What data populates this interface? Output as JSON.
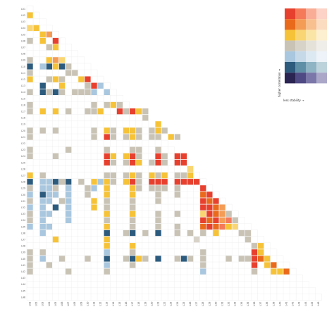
{
  "chart_data": {
    "type": "heatmap",
    "title": "",
    "xlabel": "",
    "ylabel": "",
    "labels": [
      "L01",
      "L02",
      "L03",
      "L04",
      "L05",
      "L06",
      "L07",
      "L08",
      "L09",
      "L10",
      "L11",
      "L12",
      "L13",
      "L14",
      "L15",
      "L16",
      "L17",
      "L18",
      "L19",
      "L20",
      "L21",
      "L22",
      "L23",
      "L24",
      "L25",
      "L26",
      "L27",
      "L28",
      "L29",
      "L30",
      "L31",
      "L32",
      "L33",
      "L34",
      "L35",
      "L36",
      "L37",
      "L38",
      "L39",
      "L40",
      "L41",
      "L42",
      "L43",
      "L44",
      "L45",
      "L46"
    ],
    "palette": {
      "r0c0": "#e8402e",
      "r0c1": "#f47a5a",
      "r0c2": "#f9ad97",
      "r0c3": "#fcd3c6",
      "r1c0": "#ea6a1c",
      "r1c1": "#f49c55",
      "r1c2": "#f8c08f",
      "r1c3": "#fbdcc1",
      "r2c0": "#f6c338",
      "r2c1": "#f9d673",
      "r2c2": "#fbe5a6",
      "r2c3": "#fdf0d0",
      "r3c0": "#c9c3b6",
      "r3c1": "#d8d3c9",
      "r3c2": "#e5e2da",
      "r3c3": "#f0eee9",
      "r4c0": "#a9c7df",
      "r4c1": "#c5d9e9",
      "r4c2": "#dce8f2",
      "r4c3": "#edf3f8",
      "r5c0": "#2c5b7e",
      "r5c1": "#5f8fa6",
      "r5c2": "#8fb4c3",
      "r5c3": "#bdd3dc",
      "r6c0": "#2a2452",
      "r6c1": "#4f4a83",
      "r6c2": "#7b77a8",
      "r6c3": "#aaa7c9"
    },
    "legend": {
      "y_title": "higher correlation →",
      "x_title": "less stability →",
      "placement": "top-right"
    },
    "cells": [
      [
        1,
        0,
        "r2c0"
      ],
      [
        3,
        0,
        "r2c1"
      ],
      [
        3,
        1,
        "r2c0"
      ],
      [
        4,
        2,
        "r2c0"
      ],
      [
        4,
        3,
        "r1c1"
      ],
      [
        5,
        0,
        "r3c0"
      ],
      [
        5,
        2,
        "r2c0"
      ],
      [
        5,
        4,
        "r0c0"
      ],
      [
        6,
        3,
        "r3c0"
      ],
      [
        6,
        4,
        "r2c0"
      ],
      [
        8,
        0,
        "r3c0"
      ],
      [
        8,
        3,
        "r2c0"
      ],
      [
        8,
        4,
        "r1c1"
      ],
      [
        8,
        5,
        "r2c1"
      ],
      [
        9,
        0,
        "r5c0"
      ],
      [
        9,
        2,
        "r4c0"
      ],
      [
        9,
        3,
        "r5c0"
      ],
      [
        9,
        4,
        "r2c0"
      ],
      [
        9,
        5,
        "r5c0"
      ],
      [
        9,
        6,
        "r3c0"
      ],
      [
        10,
        0,
        "r3c0"
      ],
      [
        10,
        6,
        "r3c0"
      ],
      [
        10,
        7,
        "r3c0"
      ],
      [
        11,
        0,
        "r2c0"
      ],
      [
        11,
        3,
        "r3c0"
      ],
      [
        11,
        4,
        "r2c0"
      ],
      [
        11,
        5,
        "r3c0"
      ],
      [
        11,
        8,
        "r2c0"
      ],
      [
        11,
        9,
        "r0c0"
      ],
      [
        12,
        2,
        "r5c0"
      ],
      [
        12,
        5,
        "r2c0"
      ],
      [
        12,
        9,
        "r3c0"
      ],
      [
        12,
        10,
        "r0c0"
      ],
      [
        12,
        11,
        "r4c0"
      ],
      [
        13,
        0,
        "r3c0"
      ],
      [
        13,
        2,
        "r5c0"
      ],
      [
        13,
        3,
        "r3c0"
      ],
      [
        13,
        4,
        "r5c0"
      ],
      [
        13,
        5,
        "r3c0"
      ],
      [
        13,
        7,
        "r3c0"
      ],
      [
        13,
        8,
        "r3c0"
      ],
      [
        13,
        9,
        "r3c0"
      ],
      [
        13,
        10,
        "r4c0"
      ],
      [
        13,
        12,
        "r4c0"
      ],
      [
        15,
        0,
        "r3c0"
      ],
      [
        15,
        10,
        "r3c0"
      ],
      [
        15,
        12,
        "r3c0"
      ],
      [
        15,
        13,
        "r2c0"
      ],
      [
        15,
        14,
        "r3c0"
      ],
      [
        16,
        0,
        "r3c0"
      ],
      [
        16,
        2,
        "r2c0"
      ],
      [
        16,
        4,
        "r2c0"
      ],
      [
        16,
        6,
        "r3c0"
      ],
      [
        16,
        9,
        "r3c0"
      ],
      [
        16,
        10,
        "r3c0"
      ],
      [
        16,
        11,
        "r2c0"
      ],
      [
        16,
        14,
        "r0c0"
      ],
      [
        16,
        15,
        "r3c0"
      ],
      [
        16,
        16,
        "r0c0"
      ],
      [
        16,
        17,
        "r2c0"
      ],
      [
        16,
        18,
        "r3c0"
      ],
      [
        17,
        18,
        "r3c0"
      ],
      [
        18,
        20,
        "r2c0"
      ],
      [
        19,
        0,
        "r3c0"
      ],
      [
        19,
        2,
        "r3c0"
      ],
      [
        19,
        4,
        "r3c0"
      ],
      [
        19,
        10,
        "r3c0"
      ],
      [
        19,
        12,
        "r2c0"
      ],
      [
        19,
        13,
        "r3c0"
      ],
      [
        19,
        15,
        "r2c0"
      ],
      [
        19,
        16,
        "r2c0"
      ],
      [
        19,
        17,
        "r3c0"
      ],
      [
        19,
        19,
        "r3c0"
      ],
      [
        19,
        20,
        "r2c0"
      ],
      [
        19,
        21,
        "r3c0"
      ],
      [
        20,
        0,
        "r3c0"
      ],
      [
        20,
        10,
        "r3c0"
      ],
      [
        20,
        12,
        "r0c0"
      ],
      [
        20,
        13,
        "r3c0"
      ],
      [
        20,
        15,
        "r3c0"
      ],
      [
        20,
        16,
        "r2c0"
      ],
      [
        20,
        17,
        "r3c0"
      ],
      [
        20,
        19,
        "r3c0"
      ],
      [
        20,
        20,
        "r3c0"
      ],
      [
        20,
        22,
        "r2c0"
      ],
      [
        20,
        23,
        "r3c0"
      ],
      [
        22,
        0,
        "r3c0"
      ],
      [
        22,
        6,
        "r3c0"
      ],
      [
        22,
        12,
        "r3c0"
      ],
      [
        22,
        16,
        "r3c0"
      ],
      [
        22,
        17,
        "r3c0"
      ],
      [
        22,
        20,
        "r3c0"
      ],
      [
        23,
        0,
        "r3c0"
      ],
      [
        23,
        4,
        "r3c0"
      ],
      [
        23,
        12,
        "r0c0"
      ],
      [
        23,
        13,
        "r2c0"
      ],
      [
        23,
        15,
        "r2c0"
      ],
      [
        23,
        16,
        "r0c0"
      ],
      [
        23,
        17,
        "r3c0"
      ],
      [
        23,
        20,
        "r0c0"
      ],
      [
        23,
        21,
        "r3c0"
      ],
      [
        23,
        23,
        "r0c0"
      ],
      [
        23,
        24,
        "r0c0"
      ],
      [
        24,
        12,
        "r0c0"
      ],
      [
        24,
        13,
        "r3c0"
      ],
      [
        24,
        15,
        "r3c0"
      ],
      [
        24,
        16,
        "r0c0"
      ],
      [
        24,
        17,
        "r2c0"
      ],
      [
        24,
        19,
        "r3c0"
      ],
      [
        24,
        20,
        "r0c0"
      ],
      [
        24,
        21,
        "r3c0"
      ],
      [
        24,
        23,
        "r0c0"
      ],
      [
        24,
        24,
        "r0c0"
      ],
      [
        25,
        25,
        "r2c1"
      ],
      [
        26,
        0,
        "r2c0"
      ],
      [
        26,
        2,
        "r3c0"
      ],
      [
        26,
        12,
        "r3c0"
      ],
      [
        26,
        13,
        "r3c0"
      ],
      [
        26,
        15,
        "r3c0"
      ],
      [
        26,
        16,
        "r2c0"
      ],
      [
        26,
        17,
        "r3c0"
      ],
      [
        26,
        19,
        "r2c0"
      ],
      [
        26,
        20,
        "r3c0"
      ],
      [
        26,
        21,
        "r2c0"
      ],
      [
        26,
        23,
        "r3c0"
      ],
      [
        26,
        24,
        "r3c0"
      ],
      [
        26,
        25,
        "r2c0"
      ],
      [
        27,
        0,
        "r5c0"
      ],
      [
        27,
        2,
        "r4c0"
      ],
      [
        27,
        3,
        "r4c0"
      ],
      [
        27,
        4,
        "r5c0"
      ],
      [
        27,
        5,
        "r3c0"
      ],
      [
        27,
        6,
        "r5c0"
      ],
      [
        27,
        8,
        "r3c0"
      ],
      [
        27,
        10,
        "r2c0"
      ],
      [
        27,
        11,
        "r4c0"
      ],
      [
        27,
        12,
        "r2c0"
      ],
      [
        27,
        13,
        "r3c0"
      ],
      [
        27,
        15,
        "r2c0"
      ],
      [
        27,
        16,
        "r0c0"
      ],
      [
        27,
        17,
        "r3c0"
      ],
      [
        27,
        19,
        "r0c0"
      ],
      [
        27,
        20,
        "r0c0"
      ],
      [
        27,
        21,
        "r0c0"
      ],
      [
        27,
        23,
        "r0c0"
      ],
      [
        27,
        24,
        "r0c0"
      ],
      [
        27,
        25,
        "r0c0"
      ],
      [
        27,
        26,
        "r0c0"
      ],
      [
        28,
        0,
        "r3c0"
      ],
      [
        28,
        2,
        "r4c0"
      ],
      [
        28,
        3,
        "r4c0"
      ],
      [
        28,
        4,
        "r3c0"
      ],
      [
        28,
        6,
        "r4c0"
      ],
      [
        28,
        9,
        "r3c0"
      ],
      [
        28,
        10,
        "r4c0"
      ],
      [
        28,
        12,
        "r2c0"
      ],
      [
        28,
        16,
        "r2c0"
      ],
      [
        28,
        17,
        "r3c0"
      ],
      [
        28,
        19,
        "r3c0"
      ],
      [
        28,
        20,
        "r3c0"
      ],
      [
        28,
        21,
        "r3c0"
      ],
      [
        28,
        23,
        "r3c0"
      ],
      [
        28,
        27,
        "r0c0"
      ],
      [
        29,
        0,
        "r4c0"
      ],
      [
        29,
        2,
        "r5c0"
      ],
      [
        29,
        3,
        "r4c0"
      ],
      [
        29,
        4,
        "r4c0"
      ],
      [
        29,
        6,
        "r4c0"
      ],
      [
        29,
        9,
        "r3c0"
      ],
      [
        29,
        12,
        "r2c0"
      ],
      [
        29,
        16,
        "r2c0"
      ],
      [
        29,
        20,
        "r3c0"
      ],
      [
        29,
        23,
        "r3c0"
      ],
      [
        29,
        27,
        "r1c0"
      ],
      [
        29,
        28,
        "r0c0"
      ],
      [
        30,
        0,
        "r3c0"
      ],
      [
        30,
        2,
        "r4c0"
      ],
      [
        30,
        3,
        "r4c0"
      ],
      [
        30,
        5,
        "r3c0"
      ],
      [
        30,
        6,
        "r4c0"
      ],
      [
        30,
        10,
        "r2c0"
      ],
      [
        30,
        12,
        "r3c0"
      ],
      [
        30,
        16,
        "r3c0"
      ],
      [
        30,
        20,
        "r3c0"
      ],
      [
        30,
        27,
        "r0c0"
      ],
      [
        30,
        28,
        "r1c0"
      ],
      [
        30,
        29,
        "r0c0"
      ],
      [
        31,
        0,
        "r4c0"
      ],
      [
        31,
        2,
        "r4c0"
      ],
      [
        31,
        4,
        "r5c0"
      ],
      [
        31,
        6,
        "r4c0"
      ],
      [
        31,
        10,
        "r2c0"
      ],
      [
        31,
        12,
        "r3c0"
      ],
      [
        31,
        16,
        "r3c0"
      ],
      [
        31,
        27,
        "r0c0"
      ],
      [
        31,
        28,
        "r0c0"
      ],
      [
        31,
        29,
        "r1c0"
      ],
      [
        31,
        30,
        "r1c1"
      ],
      [
        32,
        0,
        "r3c0"
      ],
      [
        32,
        2,
        "r4c0"
      ],
      [
        32,
        3,
        "r4c0"
      ],
      [
        32,
        6,
        "r4c0"
      ],
      [
        32,
        12,
        "r2c0"
      ],
      [
        32,
        16,
        "r2c0"
      ],
      [
        32,
        20,
        "r3c0"
      ],
      [
        32,
        23,
        "r3c0"
      ],
      [
        32,
        27,
        "r2c1"
      ],
      [
        32,
        28,
        "r0c0"
      ],
      [
        32,
        29,
        "r1c0"
      ],
      [
        32,
        30,
        "r1c1"
      ],
      [
        32,
        31,
        "r3c0"
      ],
      [
        33,
        0,
        "r3c0"
      ],
      [
        33,
        2,
        "r4c0"
      ],
      [
        33,
        6,
        "r4c0"
      ],
      [
        33,
        12,
        "r3c0"
      ],
      [
        33,
        16,
        "r3c0"
      ],
      [
        33,
        20,
        "r3c0"
      ],
      [
        33,
        27,
        "r0c0"
      ],
      [
        33,
        28,
        "r1c0"
      ],
      [
        33,
        29,
        "r0c0"
      ],
      [
        33,
        30,
        "r1c1"
      ],
      [
        33,
        31,
        "r0c1"
      ],
      [
        33,
        32,
        "r3c0"
      ],
      [
        34,
        0,
        "r4c0"
      ],
      [
        34,
        2,
        "r4c0"
      ],
      [
        34,
        3,
        "r4c0"
      ],
      [
        34,
        12,
        "r2c0"
      ],
      [
        34,
        16,
        "r3c0"
      ],
      [
        34,
        20,
        "r3c0"
      ],
      [
        34,
        23,
        "r3c0"
      ],
      [
        34,
        27,
        "r1c0"
      ],
      [
        34,
        28,
        "r0c0"
      ],
      [
        34,
        29,
        "r1c0"
      ],
      [
        34,
        30,
        "r0c1"
      ],
      [
        34,
        31,
        "r2c0"
      ],
      [
        34,
        32,
        "r2c1"
      ],
      [
        35,
        2,
        "r4c0"
      ],
      [
        35,
        12,
        "r5c0"
      ],
      [
        35,
        15,
        "r3c0"
      ],
      [
        35,
        16,
        "r5c0"
      ],
      [
        35,
        18,
        "r3c0"
      ],
      [
        35,
        20,
        "r5c0"
      ],
      [
        35,
        23,
        "r3c0"
      ],
      [
        35,
        25,
        "r3c0"
      ],
      [
        35,
        27,
        "r3c0"
      ],
      [
        35,
        29,
        "r2c0"
      ],
      [
        35,
        33,
        "r3c0"
      ],
      [
        35,
        34,
        "r3c0"
      ],
      [
        36,
        4,
        "r2c0"
      ],
      [
        36,
        12,
        "r2c0"
      ],
      [
        36,
        26,
        "r3c1"
      ],
      [
        36,
        34,
        "r3c0"
      ],
      [
        37,
        12,
        "r2c0"
      ],
      [
        37,
        16,
        "r2c0"
      ],
      [
        37,
        35,
        "r3c0"
      ],
      [
        37,
        36,
        "r2c0"
      ],
      [
        38,
        0,
        "r3c0"
      ],
      [
        38,
        2,
        "r3c0"
      ],
      [
        38,
        12,
        "r4c0"
      ],
      [
        38,
        16,
        "r3c0"
      ],
      [
        38,
        27,
        "r3c0"
      ],
      [
        38,
        35,
        "r0c0"
      ],
      [
        38,
        36,
        "r2c0"
      ],
      [
        39,
        0,
        "r3c0"
      ],
      [
        39,
        2,
        "r4c0"
      ],
      [
        39,
        5,
        "r3c0"
      ],
      [
        39,
        9,
        "r3c0"
      ],
      [
        39,
        12,
        "r5c0"
      ],
      [
        39,
        15,
        "r3c0"
      ],
      [
        39,
        16,
        "r5c0"
      ],
      [
        39,
        17,
        "r2c0"
      ],
      [
        39,
        18,
        "r3c0"
      ],
      [
        39,
        20,
        "r5c0"
      ],
      [
        39,
        23,
        "r3c0"
      ],
      [
        39,
        24,
        "r5c0"
      ],
      [
        39,
        25,
        "r3c0"
      ],
      [
        39,
        27,
        "r3c0"
      ],
      [
        39,
        31,
        "r3c0"
      ],
      [
        39,
        33,
        "r3c0"
      ],
      [
        39,
        34,
        "r3c0"
      ],
      [
        39,
        35,
        "r0c0"
      ],
      [
        39,
        36,
        "r1c0"
      ],
      [
        39,
        37,
        "r2c0"
      ],
      [
        40,
        0,
        "r3c0"
      ],
      [
        40,
        3,
        "r3c0"
      ],
      [
        40,
        12,
        "r4c0"
      ],
      [
        40,
        16,
        "r3c0"
      ],
      [
        40,
        27,
        "r3c0"
      ],
      [
        40,
        35,
        "r0c0"
      ],
      [
        40,
        37,
        "r2c0"
      ],
      [
        40,
        38,
        "r1c0"
      ],
      [
        41,
        0,
        "r3c0"
      ],
      [
        41,
        6,
        "r3c0"
      ],
      [
        41,
        12,
        "r3c0"
      ],
      [
        41,
        27,
        "r4c0"
      ],
      [
        41,
        35,
        "r3c0"
      ],
      [
        41,
        38,
        "r2c0"
      ],
      [
        41,
        39,
        "r2c0"
      ],
      [
        41,
        40,
        "r1c0"
      ]
    ]
  }
}
